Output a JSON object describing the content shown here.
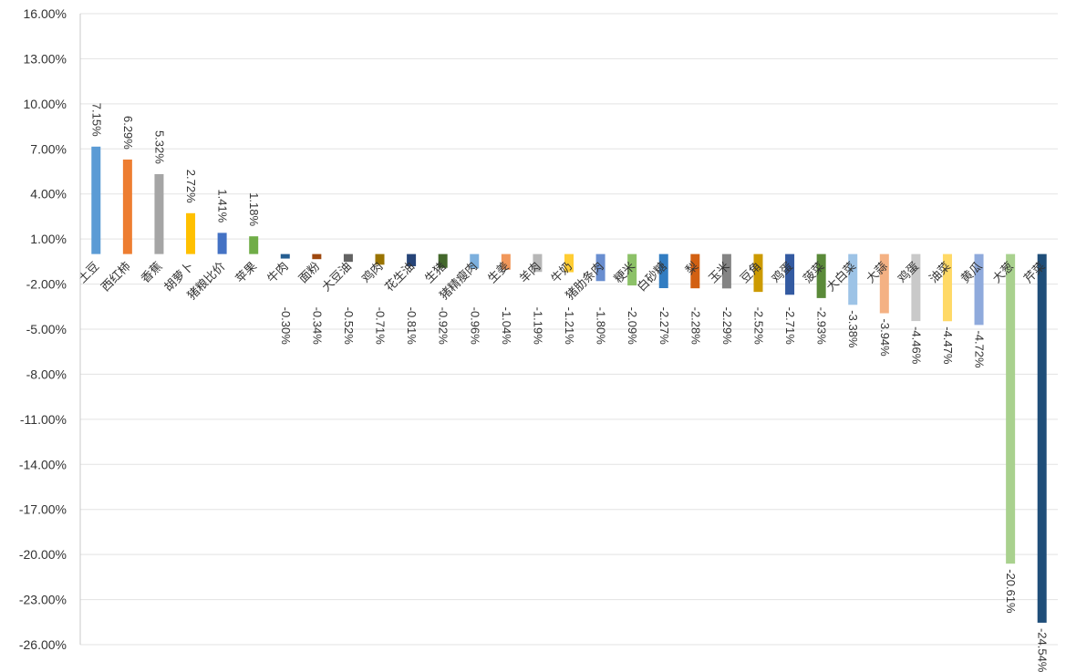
{
  "chart_data": {
    "type": "bar",
    "ylim": [
      -26,
      16
    ],
    "ytick_step": 3,
    "y_tick_labels": [
      "16.00%",
      "13.00%",
      "10.00%",
      "7.00%",
      "4.00%",
      "1.00%",
      "-2.00%",
      "-5.00%",
      "-8.00%",
      "-11.00%",
      "-14.00%",
      "-17.00%",
      "-20.00%",
      "-23.00%",
      "-26.00%"
    ],
    "grid": true,
    "categories": [
      "土豆",
      "西红柿",
      "香蕉",
      "胡萝卜",
      "猪粮比价",
      "苹果",
      "牛肉",
      "面粉",
      "大豆油",
      "鸡肉",
      "花生油",
      "生猪",
      "猪精瘦肉",
      "生姜",
      "羊肉",
      "牛奶",
      "猪肋条肉",
      "粳米",
      "白砂糖",
      "梨",
      "玉米",
      "豆角",
      "鸡蛋",
      "菠菜",
      "大白菜",
      "大蒜",
      "鸡蛋",
      "油菜",
      "黄瓜",
      "大葱",
      "芹菜"
    ],
    "values": [
      7.15,
      6.29,
      5.32,
      2.72,
      1.41,
      1.18,
      -0.3,
      -0.34,
      -0.52,
      -0.71,
      -0.81,
      -0.92,
      -0.96,
      -1.04,
      -1.19,
      -1.21,
      -1.8,
      -2.09,
      -2.27,
      -2.28,
      -2.29,
      -2.52,
      -2.71,
      -2.93,
      -3.38,
      -3.94,
      -4.46,
      -4.47,
      -4.72,
      -20.61,
      -24.54
    ],
    "data_labels": [
      "7.15%",
      "6.29%",
      "5.32%",
      "2.72%",
      "1.41%",
      "1.18%",
      "-0.30%",
      "-0.34%",
      "-0.52%",
      "-0.71%",
      "-0.81%",
      "-0.92%",
      "-0.96%",
      "-1.04%",
      "-1.19%",
      "-1.21%",
      "-1.80%",
      "-2.09%",
      "-2.27%",
      "-2.28%",
      "-2.29%",
      "-2.52%",
      "-2.71%",
      "-2.93%",
      "-3.38%",
      "-3.94%",
      "-4.46%",
      "-4.47%",
      "-4.72%",
      "-20.61%",
      "-24.54%"
    ],
    "colors": [
      "#5b9bd5",
      "#ed7d31",
      "#a5a5a5",
      "#ffc000",
      "#4472c4",
      "#70ad47",
      "#255e91",
      "#9e480e",
      "#636363",
      "#997300",
      "#264478",
      "#43682b",
      "#7cafdd",
      "#f1975a",
      "#b7b7b7",
      "#ffcd33",
      "#698ed0",
      "#8cc168",
      "#327dc2",
      "#d26012",
      "#848484",
      "#cc9a00",
      "#335aa1",
      "#5a8a39",
      "#9dc3e6",
      "#f4b183",
      "#c9c9c9",
      "#ffd966",
      "#8faadc",
      "#a9d18e",
      "#1f4e79"
    ]
  }
}
